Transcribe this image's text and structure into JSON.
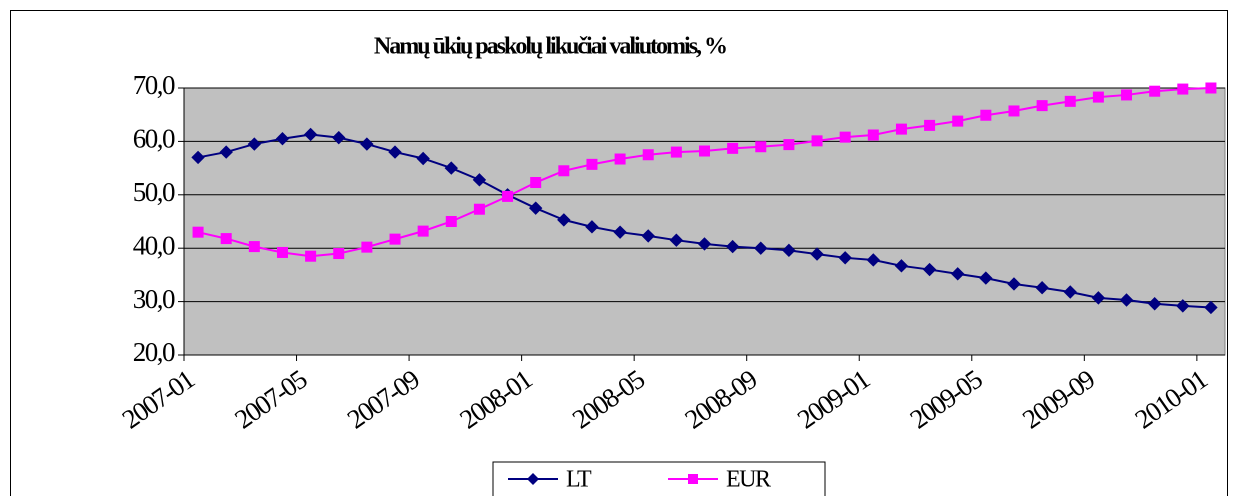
{
  "chart_data": {
    "type": "line",
    "title": "Namų ūkių paskolų likučiai valiutomis, %",
    "categories": [
      "2007-01",
      null,
      null,
      null,
      "2007-05",
      null,
      null,
      null,
      "2007-09",
      null,
      null,
      null,
      "2008-01",
      null,
      null,
      null,
      "2008-05",
      null,
      null,
      null,
      "2008-09",
      null,
      null,
      null,
      "2009-01",
      null,
      null,
      null,
      "2009-05",
      null,
      null,
      null,
      "2009-09",
      null,
      null,
      null,
      "2010-01"
    ],
    "series": [
      {
        "name": "LT",
        "color": "#000080",
        "marker": "diamond",
        "values": [
          57.0,
          58.0,
          59.5,
          60.5,
          61.3,
          60.7,
          59.5,
          58.0,
          56.8,
          55.0,
          52.8,
          50.0,
          47.5,
          45.3,
          44.0,
          43.0,
          42.3,
          41.5,
          40.8,
          40.3,
          40.0,
          39.6,
          38.9,
          38.2,
          37.8,
          36.7,
          36.0,
          35.2,
          34.4,
          33.3,
          32.6,
          31.8,
          30.7,
          30.3,
          29.6,
          29.2,
          28.9
        ]
      },
      {
        "name": "EUR",
        "color": "#ff00ff",
        "marker": "square",
        "values": [
          43.0,
          41.8,
          40.3,
          39.2,
          38.5,
          39.0,
          40.2,
          41.7,
          43.2,
          45.0,
          47.3,
          49.7,
          52.3,
          54.5,
          55.7,
          56.7,
          57.5,
          58.0,
          58.2,
          58.7,
          59.0,
          59.4,
          60.1,
          60.8,
          61.2,
          62.3,
          63.0,
          63.8,
          64.9,
          65.7,
          66.7,
          67.5,
          68.3,
          68.7,
          69.4,
          69.8,
          70.0
        ]
      }
    ],
    "ylim": [
      20,
      70
    ],
    "yticks": [
      {
        "value": 20,
        "label": "20,0"
      },
      {
        "value": 30,
        "label": "30,0"
      },
      {
        "value": 40,
        "label": "40,0"
      },
      {
        "value": 50,
        "label": "50,0"
      },
      {
        "value": 60,
        "label": "60,0"
      },
      {
        "value": 70,
        "label": "70,0"
      }
    ],
    "grid": true,
    "plot_background": "#c0c0c0",
    "legend": "bottom"
  }
}
